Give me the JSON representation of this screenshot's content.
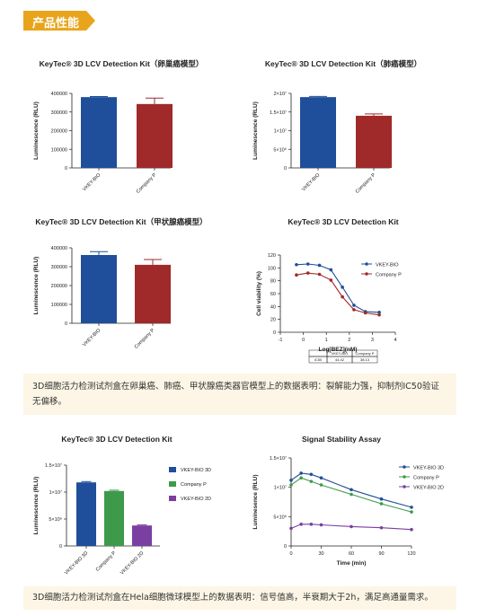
{
  "header": {
    "badge": "产品性能"
  },
  "notes": {
    "note1": "3D细胞活力检测试剂盒在卵巢癌、肺癌、甲状腺癌类器官模型上的数据表明：裂解能力强，抑制剂IC50验证无偏移。",
    "note2": "3D细胞活力检测试剂盒在Hela细胞微球模型上的数据表明：信号值高，半衰期大于2h，满足高通量需求。"
  },
  "colors": {
    "blue": "#1f4e9a",
    "red": "#a02a2a",
    "green": "#3e9a4a",
    "purple": "#7a3fa0",
    "badge": "#e8a51c",
    "note_bg": "#fdf6e6"
  },
  "chart_data": [
    {
      "type": "bar",
      "title": "KeyTec® 3D LCV Detection Kit（卵巢癌模型）",
      "ylabel": "Luminescence (RLU)",
      "categories": [
        "VKEY-BIO",
        "Company P"
      ],
      "values": [
        380000,
        343000
      ],
      "errors": [
        3000,
        32000
      ],
      "colors": [
        "#1f4e9a",
        "#a02a2a"
      ],
      "ylim": [
        0,
        400000
      ],
      "yticks": [
        "0",
        "100000",
        "200000",
        "300000",
        "400000"
      ]
    },
    {
      "type": "bar",
      "title": "KeyTec® 3D LCV Detection Kit（肺癌模型）",
      "ylabel": "Luminescence (RLU)",
      "categories": [
        "VKEY-BIO",
        "Company P"
      ],
      "values": [
        19000000,
        14000000
      ],
      "errors": [
        200000,
        500000
      ],
      "colors": [
        "#1f4e9a",
        "#a02a2a"
      ],
      "ylim": [
        0,
        20000000
      ],
      "yticks": [
        "0",
        "5×10⁶",
        "1×10⁷",
        "1.5×10⁷",
        "2×10⁷"
      ]
    },
    {
      "type": "bar",
      "title": "KeyTec® 3D LCV Detection Kit（甲状腺癌模型）",
      "ylabel": "Luminescence (RLU)",
      "categories": [
        "VKEY-BIO",
        "Company P"
      ],
      "values": [
        362000,
        310000
      ],
      "errors": [
        18000,
        28000
      ],
      "colors": [
        "#1f4e9a",
        "#a02a2a"
      ],
      "ylim": [
        0,
        400000
      ],
      "yticks": [
        "0",
        "100000",
        "200000",
        "300000",
        "400000"
      ]
    },
    {
      "type": "line",
      "title": "KeyTec® 3D LCV Detection Kit",
      "xlabel": "Log[BEZ](nM)",
      "ylabel": "Cell viability (%)",
      "xlim": [
        -1,
        4
      ],
      "ylim": [
        0,
        120
      ],
      "xticks": [
        "-1",
        "0",
        "1",
        "2",
        "3",
        "4"
      ],
      "yticks": [
        "0",
        "20",
        "40",
        "60",
        "80",
        "100",
        "120"
      ],
      "series": [
        {
          "name": "VKEY-BIO",
          "color": "#1f4e9a",
          "x": [
            -0.3,
            0.2,
            0.7,
            1.2,
            1.7,
            2.2,
            2.7,
            3.3
          ],
          "y": [
            105,
            106,
            104,
            97,
            70,
            42,
            32,
            31
          ]
        },
        {
          "name": "Company P",
          "color": "#a02a2a",
          "x": [
            -0.3,
            0.2,
            0.7,
            1.2,
            1.7,
            2.2,
            2.7,
            3.3
          ],
          "y": [
            89,
            92,
            90,
            81,
            55,
            35,
            30,
            27
          ]
        }
      ],
      "table": {
        "header": [
          "",
          "VKEY-BIO",
          "Company P"
        ],
        "rows": [
          [
            "IC50",
            "44.42",
            "38.13"
          ]
        ]
      }
    },
    {
      "type": "bar",
      "title": "KeyTec® 3D LCV Detection Kit",
      "ylabel": "Luminescence (RLU)",
      "categories": [
        "VKEY-BIO 3D",
        "Company P",
        "VKEY-BIO 2D"
      ],
      "values": [
        11800000,
        10200000,
        3800000
      ],
      "errors": [
        150000,
        150000,
        100000
      ],
      "colors": [
        "#1f4e9a",
        "#3e9a4a",
        "#7a3fa0"
      ],
      "ylim": [
        0,
        15000000
      ],
      "yticks": [
        "0",
        "5×10⁶",
        "1×10⁷",
        "1.5×10⁷"
      ],
      "legend": [
        "VKEY-BIO 3D",
        "Company P",
        "VKEY-BIO 2D"
      ]
    },
    {
      "type": "line",
      "title": "Signal Stability Assay",
      "xlabel": "Time (min)",
      "ylabel": "Luminesence (RLU)",
      "xlim": [
        0,
        120
      ],
      "ylim": [
        0,
        15000000
      ],
      "xticks": [
        "0",
        "30",
        "60",
        "90",
        "120"
      ],
      "yticks": [
        "0",
        "5×10⁶",
        "1×10⁷",
        "1.5×10⁷"
      ],
      "series": [
        {
          "name": "VKEY-BIO 3D",
          "color": "#1f4e9a",
          "x": [
            0,
            10,
            20,
            30,
            60,
            90,
            120
          ],
          "y": [
            11200000,
            12400000,
            12200000,
            11600000,
            9600000,
            8000000,
            6600000
          ]
        },
        {
          "name": "Company P",
          "color": "#3e9a4a",
          "x": [
            0,
            10,
            20,
            30,
            60,
            90,
            120
          ],
          "y": [
            10400000,
            11600000,
            11000000,
            10400000,
            8800000,
            7200000,
            5800000
          ]
        },
        {
          "name": "VKEY-BIO 2D",
          "color": "#7a3fa0",
          "x": [
            0,
            10,
            20,
            30,
            60,
            90,
            120
          ],
          "y": [
            3000000,
            3700000,
            3700000,
            3600000,
            3300000,
            3100000,
            2800000
          ]
        }
      ]
    }
  ]
}
